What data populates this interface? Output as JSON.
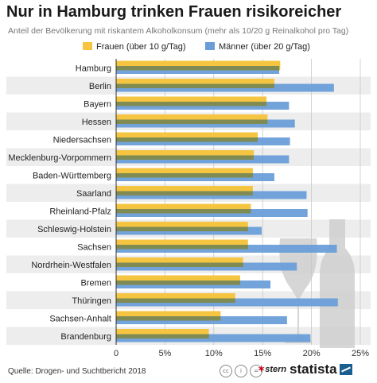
{
  "title": "Nur in Hamburg trinken Frauen risikoreicher",
  "subtitle": "Anteil der Bevölkerung mit riskantem Alkoholkonsum (mehr als 10/20 g Reinalkohol pro Tag)",
  "footer": {
    "source": "Quelle: Drogen- und Suchtbericht 2018",
    "cc_icons": [
      "cc-icon",
      "by-icon",
      "nd-icon"
    ],
    "cc_glyphs": [
      "cc",
      "i",
      "="
    ],
    "partner": "stern",
    "brand": "statista"
  },
  "chart_data": {
    "type": "bar",
    "orientation": "horizontal",
    "categories": [
      "Hamburg",
      "Berlin",
      "Bayern",
      "Hessen",
      "Niedersachsen",
      "Mecklenburg-Vorpommern",
      "Baden-Württemberg",
      "Saarland",
      "Rheinland-Pfalz",
      "Schleswig-Holstein",
      "Sachsen",
      "Nordrhein-Westfalen",
      "Bremen",
      "Thüringen",
      "Sachsen-Anhalt",
      "Brandenburg"
    ],
    "series": [
      {
        "name": "Frauen (über 10 g/Tag)",
        "color": "#f5c542",
        "values": [
          16.8,
          16.2,
          15.4,
          15.5,
          14.5,
          14.1,
          14.0,
          14.0,
          13.8,
          13.5,
          13.5,
          13.0,
          12.7,
          12.2,
          10.7,
          9.5
        ]
      },
      {
        "name": "Männer (über 20 g/Tag)",
        "color": "#6a9ed8",
        "values": [
          16.7,
          22.3,
          17.7,
          18.3,
          17.8,
          17.7,
          16.2,
          19.5,
          19.6,
          14.9,
          22.6,
          18.5,
          15.8,
          22.7,
          17.5,
          19.9
        ]
      }
    ],
    "xlim": [
      0,
      25
    ],
    "xticks": [
      "0",
      "5%",
      "10%",
      "15%",
      "20%",
      "25%"
    ],
    "xtick_values": [
      0,
      5,
      10,
      15,
      20,
      25
    ],
    "legend_position": "top",
    "grid": "vertical",
    "row_stripes": true,
    "decoration": "wine glass and bottle silhouettes"
  }
}
